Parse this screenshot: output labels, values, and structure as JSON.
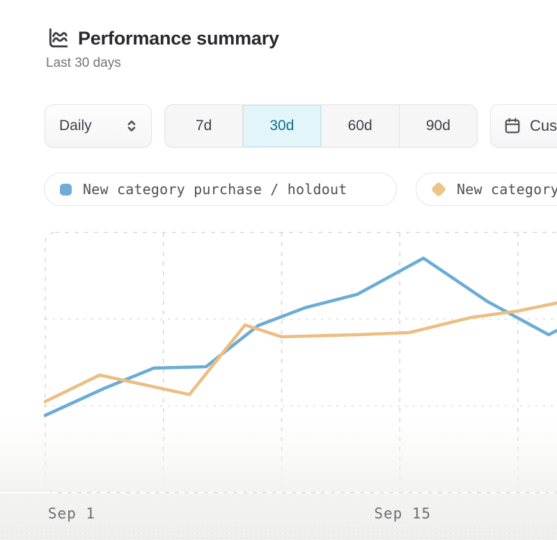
{
  "header": {
    "title": "Performance summary",
    "subtitle": "Last 30 days",
    "icon": "line-chart-icon"
  },
  "controls": {
    "granularity": {
      "value": "Daily",
      "icon": "chevron-up-down-icon"
    },
    "range_options": [
      {
        "label": "7d",
        "selected": false
      },
      {
        "label": "30d",
        "selected": true
      },
      {
        "label": "60d",
        "selected": false
      },
      {
        "label": "90d",
        "selected": false
      }
    ],
    "custom_button": {
      "label": "Custom",
      "icon": "calendar-icon"
    }
  },
  "legend": [
    {
      "label": "New category purchase / holdout",
      "shape": "square",
      "color": "#6fadd7"
    },
    {
      "label": "New category purchase",
      "shape": "diamond",
      "color": "#eec489"
    }
  ],
  "chart_data": {
    "type": "line",
    "title": "Performance summary",
    "xlabel": "",
    "ylabel": "",
    "x_unit": "days from Sep 1",
    "x_domain_days": [
      -1,
      20.7
    ],
    "y_domain": [
      0,
      100
    ],
    "grid": {
      "style": "dashed",
      "vertical_days": [
        4,
        9,
        14,
        19
      ],
      "horizontal_values": [
        33.3,
        66.7
      ]
    },
    "x_ticks": [
      {
        "label": "Sep 1",
        "day": 0
      },
      {
        "label": "Sep 15",
        "day": 14
      }
    ],
    "series": [
      {
        "name": "New category purchase / holdout",
        "color": "#6aacd6",
        "points": [
          [
            -1,
            29.7
          ],
          [
            1.5,
            40.1
          ],
          [
            3.6,
            47.9
          ],
          [
            5.8,
            48.4
          ],
          [
            8,
            64.2
          ],
          [
            10,
            71.1
          ],
          [
            12.2,
            76.2
          ],
          [
            15,
            90.1
          ],
          [
            17.7,
            73.5
          ],
          [
            20.3,
            60.7
          ],
          [
            20.7,
            62.6
          ]
        ]
      },
      {
        "name": "New category purchase",
        "color": "#ecbe82",
        "points": [
          [
            -1,
            35.0
          ],
          [
            1.3,
            45.2
          ],
          [
            5.1,
            37.7
          ],
          [
            7.45,
            64.4
          ],
          [
            9,
            59.9
          ],
          [
            12.2,
            60.7
          ],
          [
            14.4,
            61.5
          ],
          [
            17,
            67.3
          ],
          [
            19,
            69.8
          ],
          [
            20.7,
            73.0
          ]
        ]
      }
    ],
    "legend_position": "top",
    "colors": {
      "grid": "#d8d8d6",
      "selected_range_bg": "#e2f5f9",
      "selected_range_text": "#136f8c",
      "axis_label": "#6e6e74"
    }
  }
}
